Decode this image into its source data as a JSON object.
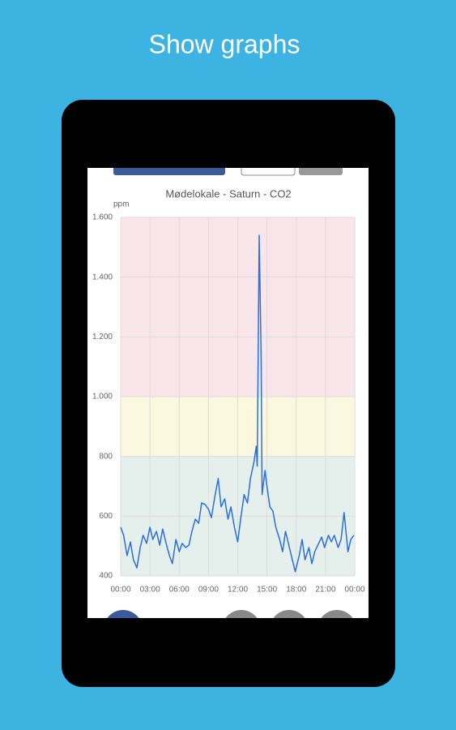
{
  "caption": "Show graphs",
  "chart_data": {
    "type": "line",
    "title": "Mødelokale - Saturn - CO2",
    "y_label": "ppm",
    "x": [
      0,
      0.3,
      0.66,
      1.0,
      1.3,
      1.66,
      2.0,
      2.3,
      2.66,
      3.0,
      3.3,
      3.66,
      4.0,
      4.3,
      4.66,
      5.0,
      5.3,
      5.66,
      6.0,
      6.3,
      6.66,
      7.0,
      7.3,
      7.66,
      8.0,
      8.3,
      8.66,
      9.0,
      9.3,
      9.66,
      10.0,
      10.3,
      10.66,
      11.0,
      11.3,
      11.66,
      12.0,
      12.3,
      12.66,
      13.0,
      13.3,
      13.66,
      13.9,
      14.0,
      14.2,
      14.4,
      14.5,
      14.8,
      15.0,
      15.3,
      15.6,
      15.9,
      16.3,
      16.6,
      16.9,
      17.3,
      17.6,
      17.9,
      18.3,
      18.6,
      18.9,
      19.3,
      19.6,
      19.9,
      20.3,
      20.6,
      20.9,
      21.3,
      21.6,
      21.9,
      22.3,
      22.6,
      22.9,
      23.3,
      23.6,
      23.9
    ],
    "values": [
      563,
      536,
      468,
      514,
      454,
      427,
      495,
      536,
      509,
      563,
      522,
      549,
      503,
      557,
      509,
      468,
      441,
      522,
      481,
      509,
      495,
      503,
      549,
      590,
      576,
      644,
      639,
      623,
      595,
      666,
      726,
      631,
      658,
      590,
      631,
      563,
      514,
      590,
      672,
      644,
      726,
      780,
      834,
      767,
      1540,
      1133,
      672,
      753,
      699,
      631,
      617,
      563,
      522,
      481,
      549,
      495,
      454,
      414,
      468,
      522,
      454,
      495,
      441,
      481,
      509,
      530,
      495,
      536,
      514,
      536,
      495,
      522,
      612,
      481,
      522,
      536
    ],
    "color": "#2a6fe0",
    "xlim": [
      0,
      24
    ],
    "xticks": [
      {
        "value": 0,
        "label": "00:00"
      },
      {
        "value": 3,
        "label": "03:00"
      },
      {
        "value": 6,
        "label": "06:00"
      },
      {
        "value": 9,
        "label": "09:00"
      },
      {
        "value": 12,
        "label": "12:00"
      },
      {
        "value": 15,
        "label": "15:00"
      },
      {
        "value": 18,
        "label": "18:00"
      },
      {
        "value": 21,
        "label": "21:00"
      },
      {
        "value": 24,
        "label": "00:00"
      }
    ],
    "ylim": [
      400,
      1600
    ],
    "yticks": [
      400,
      600,
      800,
      {
        "value": 1000,
        "label": "1.000"
      },
      {
        "value": 1200,
        "label": "1.200"
      },
      {
        "value": 1400,
        "label": "1.400"
      },
      {
        "value": 1600,
        "label": "1.600"
      }
    ],
    "grid": true,
    "bands": [
      {
        "from": 400,
        "to": 800,
        "color": "#e5efeb"
      },
      {
        "from": 800,
        "to": 1000,
        "color": "#fbf8df"
      },
      {
        "from": 1000,
        "to": 1600,
        "color": "#f8e6ea"
      }
    ]
  }
}
